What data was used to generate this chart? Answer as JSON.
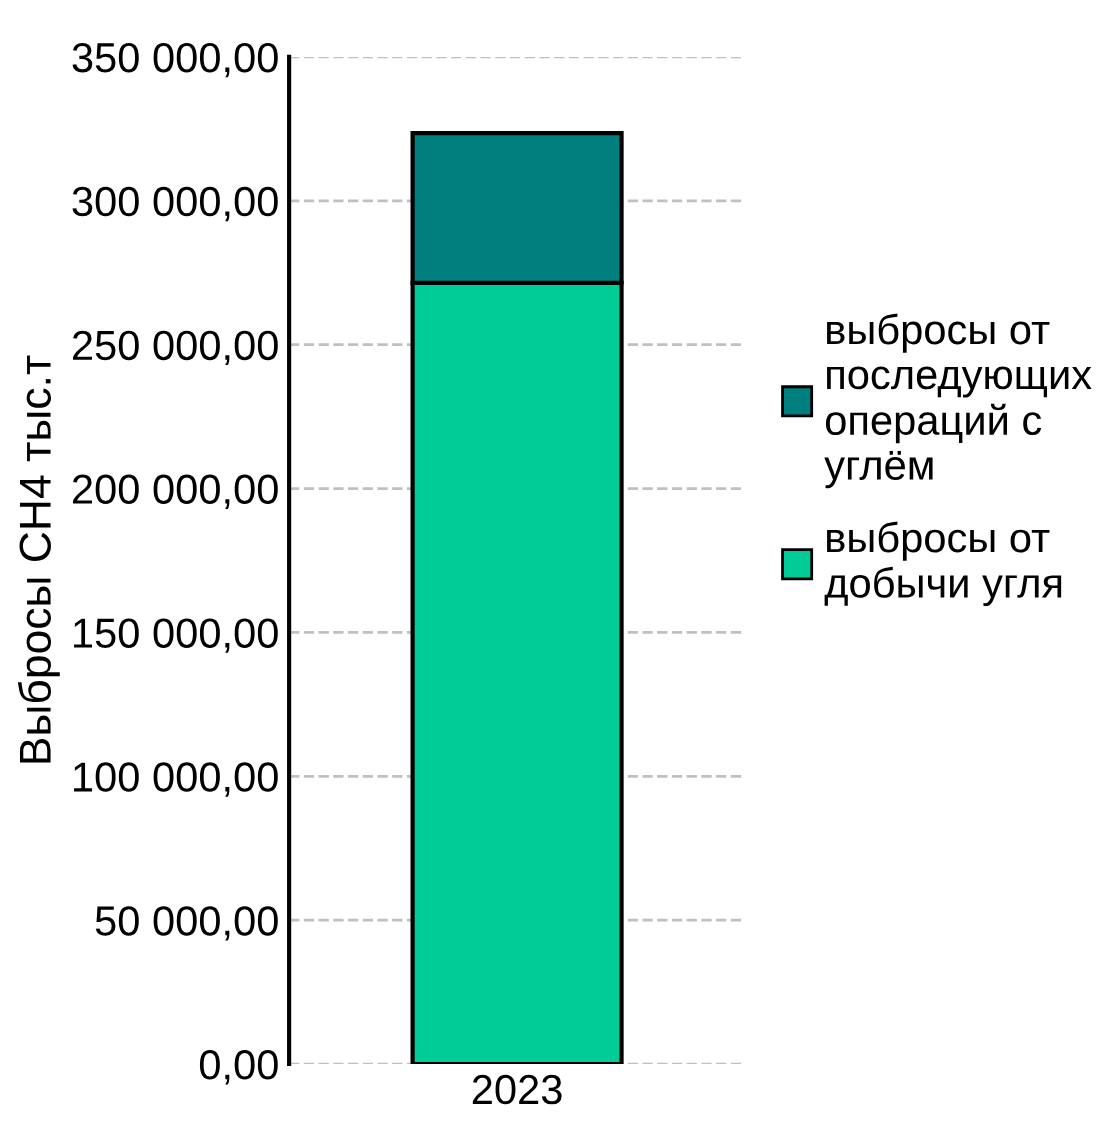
{
  "chart_data": {
    "type": "bar",
    "stacked": true,
    "ylabel": "Выбросы CH4 тыс.т",
    "categories": [
      "2023"
    ],
    "series": [
      {
        "name": "выбросы от\nдобычи угля",
        "color": "#00cc96",
        "values": [
          271500
        ]
      },
      {
        "name": "выбросы от\nпоследующих\nопераций с\nуглём",
        "color": "#007f7f",
        "values": [
          52000
        ]
      }
    ],
    "ylim": [
      0,
      350000
    ],
    "yticks": [
      {
        "value": 0,
        "label": "0,00"
      },
      {
        "value": 50000,
        "label": "50 000,00"
      },
      {
        "value": 100000,
        "label": "100 000,00"
      },
      {
        "value": 150000,
        "label": "150 000,00"
      },
      {
        "value": 200000,
        "label": "200 000,00"
      },
      {
        "value": 250000,
        "label": "250 000,00"
      },
      {
        "value": 300000,
        "label": "300 000,00"
      },
      {
        "value": 350000,
        "label": "350 000,00"
      }
    ],
    "grid": "y",
    "legend": "right"
  }
}
